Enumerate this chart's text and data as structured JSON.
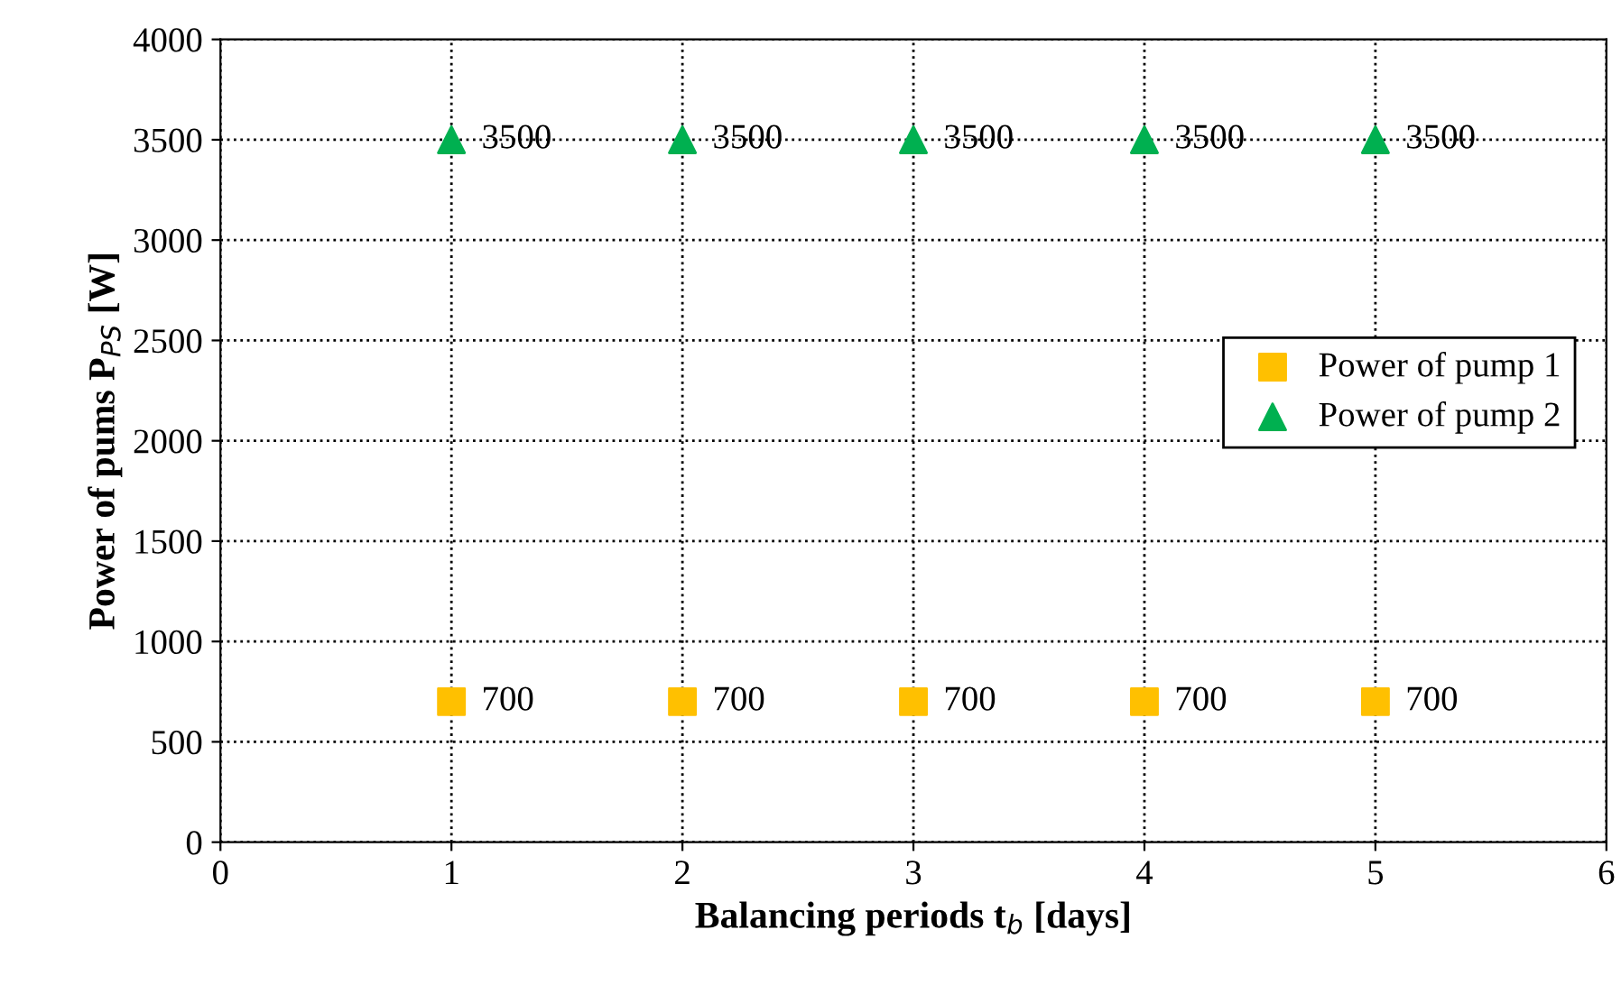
{
  "chart_data": {
    "type": "scatter",
    "xlabel": "Balancing periods t$_{b}$ [days]",
    "ylabel": "Power of pums P$_{PS}$ [W]",
    "x": [
      1,
      2,
      3,
      4,
      5
    ],
    "series": [
      {
        "name": "Power of pump 1",
        "color": "#ffc000",
        "marker": "square",
        "values": [
          700,
          700,
          700,
          700,
          700
        ]
      },
      {
        "name": "Power of pump 2",
        "color": "#00b050",
        "marker": "triangle",
        "values": [
          3500,
          3500,
          3500,
          3500,
          3500
        ]
      }
    ],
    "xlim": [
      0,
      6
    ],
    "xticks": [
      0,
      1,
      2,
      3,
      4,
      5,
      6
    ],
    "ylim": [
      0,
      4000
    ],
    "yticks": [
      0,
      500,
      1000,
      1500,
      2000,
      2500,
      3000,
      3500,
      4000
    ],
    "grid": true,
    "legend": "right",
    "data_labels": true
  }
}
